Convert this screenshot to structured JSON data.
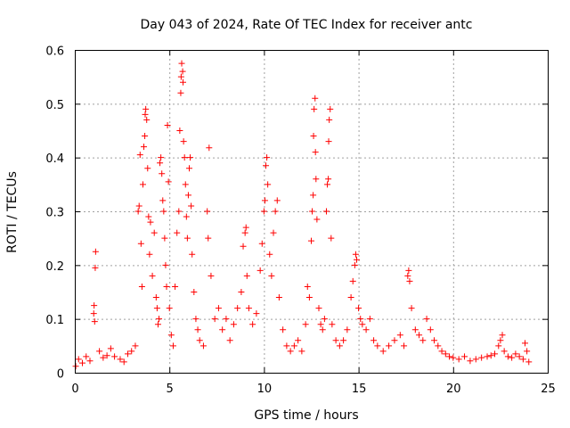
{
  "chart_data": {
    "type": "scatter",
    "title": "Day 043 of 2024, Rate Of TEC Index for receiver antc",
    "xlabel": "GPS time / hours",
    "ylabel": "ROTI / TECUs",
    "xlim": [
      0,
      25
    ],
    "ylim": [
      0,
      0.6
    ],
    "x_ticks": [
      "0",
      "5",
      "10",
      "15",
      "20",
      "25"
    ],
    "y_ticks": [
      "0",
      "0.1",
      "0.2",
      "0.3",
      "0.4",
      "0.5",
      "0.6"
    ],
    "grid": true,
    "marker": "plus",
    "color": "#ff0000",
    "series": [
      {
        "points": [
          [
            0.05,
            0.012
          ],
          [
            0.2,
            0.025
          ],
          [
            0.4,
            0.018
          ],
          [
            0.6,
            0.03
          ],
          [
            0.8,
            0.022
          ],
          [
            1.0,
            0.11
          ],
          [
            1.02,
            0.125
          ],
          [
            1.05,
            0.095
          ],
          [
            1.08,
            0.195
          ],
          [
            1.1,
            0.225
          ],
          [
            1.3,
            0.04
          ],
          [
            1.5,
            0.028
          ],
          [
            1.7,
            0.032
          ],
          [
            1.9,
            0.045
          ],
          [
            2.1,
            0.03
          ],
          [
            2.4,
            0.025
          ],
          [
            2.6,
            0.02
          ],
          [
            2.8,
            0.035
          ],
          [
            3.0,
            0.04
          ],
          [
            3.2,
            0.05
          ],
          [
            3.35,
            0.3
          ],
          [
            3.4,
            0.31
          ],
          [
            3.45,
            0.405
          ],
          [
            3.5,
            0.24
          ],
          [
            3.55,
            0.16
          ],
          [
            3.6,
            0.35
          ],
          [
            3.65,
            0.42
          ],
          [
            3.7,
            0.44
          ],
          [
            3.72,
            0.48
          ],
          [
            3.75,
            0.49
          ],
          [
            3.8,
            0.47
          ],
          [
            3.85,
            0.38
          ],
          [
            3.9,
            0.29
          ],
          [
            3.95,
            0.22
          ],
          [
            4.0,
            0.28
          ],
          [
            4.1,
            0.18
          ],
          [
            4.2,
            0.26
          ],
          [
            4.3,
            0.14
          ],
          [
            4.35,
            0.12
          ],
          [
            4.4,
            0.09
          ],
          [
            4.45,
            0.1
          ],
          [
            4.5,
            0.39
          ],
          [
            4.55,
            0.4
          ],
          [
            4.6,
            0.37
          ],
          [
            4.65,
            0.32
          ],
          [
            4.7,
            0.3
          ],
          [
            4.75,
            0.25
          ],
          [
            4.8,
            0.2
          ],
          [
            4.85,
            0.16
          ],
          [
            4.9,
            0.46
          ],
          [
            4.95,
            0.355
          ],
          [
            5.0,
            0.12
          ],
          [
            5.1,
            0.07
          ],
          [
            5.2,
            0.05
          ],
          [
            5.3,
            0.16
          ],
          [
            5.4,
            0.26
          ],
          [
            5.5,
            0.3
          ],
          [
            5.55,
            0.45
          ],
          [
            5.6,
            0.52
          ],
          [
            5.62,
            0.55
          ],
          [
            5.65,
            0.575
          ],
          [
            5.7,
            0.56
          ],
          [
            5.72,
            0.54
          ],
          [
            5.75,
            0.43
          ],
          [
            5.8,
            0.4
          ],
          [
            5.85,
            0.35
          ],
          [
            5.9,
            0.29
          ],
          [
            5.95,
            0.25
          ],
          [
            6.0,
            0.33
          ],
          [
            6.05,
            0.38
          ],
          [
            6.1,
            0.4
          ],
          [
            6.15,
            0.31
          ],
          [
            6.2,
            0.22
          ],
          [
            6.3,
            0.15
          ],
          [
            6.4,
            0.1
          ],
          [
            6.5,
            0.08
          ],
          [
            6.6,
            0.06
          ],
          [
            6.8,
            0.05
          ],
          [
            7.0,
            0.3
          ],
          [
            7.05,
            0.25
          ],
          [
            7.1,
            0.418
          ],
          [
            7.2,
            0.18
          ],
          [
            7.4,
            0.1
          ],
          [
            7.6,
            0.12
          ],
          [
            7.8,
            0.08
          ],
          [
            8.0,
            0.1
          ],
          [
            8.2,
            0.06
          ],
          [
            8.4,
            0.09
          ],
          [
            8.6,
            0.12
          ],
          [
            8.8,
            0.15
          ],
          [
            8.9,
            0.235
          ],
          [
            9.0,
            0.26
          ],
          [
            9.05,
            0.27
          ],
          [
            9.1,
            0.18
          ],
          [
            9.2,
            0.12
          ],
          [
            9.4,
            0.09
          ],
          [
            9.6,
            0.11
          ],
          [
            9.8,
            0.19
          ],
          [
            9.9,
            0.24
          ],
          [
            10.0,
            0.3
          ],
          [
            10.05,
            0.32
          ],
          [
            10.1,
            0.385
          ],
          [
            10.15,
            0.4
          ],
          [
            10.2,
            0.35
          ],
          [
            10.3,
            0.22
          ],
          [
            10.4,
            0.18
          ],
          [
            10.5,
            0.26
          ],
          [
            10.6,
            0.3
          ],
          [
            10.7,
            0.32
          ],
          [
            10.8,
            0.14
          ],
          [
            11.0,
            0.08
          ],
          [
            11.2,
            0.05
          ],
          [
            11.4,
            0.04
          ],
          [
            11.6,
            0.05
          ],
          [
            11.8,
            0.06
          ],
          [
            12.0,
            0.04
          ],
          [
            12.2,
            0.09
          ],
          [
            12.3,
            0.16
          ],
          [
            12.4,
            0.14
          ],
          [
            12.5,
            0.245
          ],
          [
            12.55,
            0.3
          ],
          [
            12.6,
            0.33
          ],
          [
            12.62,
            0.44
          ],
          [
            12.65,
            0.49
          ],
          [
            12.7,
            0.51
          ],
          [
            12.72,
            0.41
          ],
          [
            12.75,
            0.36
          ],
          [
            12.8,
            0.285
          ],
          [
            12.9,
            0.12
          ],
          [
            13.0,
            0.09
          ],
          [
            13.1,
            0.08
          ],
          [
            13.2,
            0.1
          ],
          [
            13.3,
            0.3
          ],
          [
            13.35,
            0.35
          ],
          [
            13.4,
            0.36
          ],
          [
            13.42,
            0.43
          ],
          [
            13.45,
            0.47
          ],
          [
            13.5,
            0.49
          ],
          [
            13.55,
            0.25
          ],
          [
            13.6,
            0.09
          ],
          [
            13.8,
            0.06
          ],
          [
            14.0,
            0.05
          ],
          [
            14.2,
            0.06
          ],
          [
            14.4,
            0.08
          ],
          [
            14.6,
            0.14
          ],
          [
            14.7,
            0.17
          ],
          [
            14.8,
            0.2
          ],
          [
            14.85,
            0.22
          ],
          [
            14.9,
            0.21
          ],
          [
            15.0,
            0.12
          ],
          [
            15.1,
            0.1
          ],
          [
            15.2,
            0.09
          ],
          [
            15.4,
            0.08
          ],
          [
            15.6,
            0.1
          ],
          [
            15.8,
            0.06
          ],
          [
            16.0,
            0.05
          ],
          [
            16.3,
            0.04
          ],
          [
            16.6,
            0.05
          ],
          [
            16.9,
            0.06
          ],
          [
            17.2,
            0.07
          ],
          [
            17.4,
            0.05
          ],
          [
            17.6,
            0.18
          ],
          [
            17.65,
            0.19
          ],
          [
            17.7,
            0.17
          ],
          [
            17.8,
            0.12
          ],
          [
            18.0,
            0.08
          ],
          [
            18.2,
            0.07
          ],
          [
            18.4,
            0.06
          ],
          [
            18.6,
            0.1
          ],
          [
            18.8,
            0.08
          ],
          [
            19.0,
            0.06
          ],
          [
            19.2,
            0.05
          ],
          [
            19.4,
            0.04
          ],
          [
            19.6,
            0.035
          ],
          [
            19.8,
            0.03
          ],
          [
            20.0,
            0.028
          ],
          [
            20.3,
            0.025
          ],
          [
            20.6,
            0.03
          ],
          [
            20.9,
            0.022
          ],
          [
            21.2,
            0.025
          ],
          [
            21.5,
            0.028
          ],
          [
            21.8,
            0.03
          ],
          [
            22.0,
            0.032
          ],
          [
            22.2,
            0.035
          ],
          [
            22.4,
            0.05
          ],
          [
            22.5,
            0.06
          ],
          [
            22.6,
            0.07
          ],
          [
            22.7,
            0.04
          ],
          [
            22.9,
            0.03
          ],
          [
            23.1,
            0.028
          ],
          [
            23.3,
            0.035
          ],
          [
            23.5,
            0.03
          ],
          [
            23.7,
            0.025
          ],
          [
            23.8,
            0.055
          ],
          [
            23.9,
            0.04
          ],
          [
            24.0,
            0.02
          ]
        ]
      }
    ]
  }
}
